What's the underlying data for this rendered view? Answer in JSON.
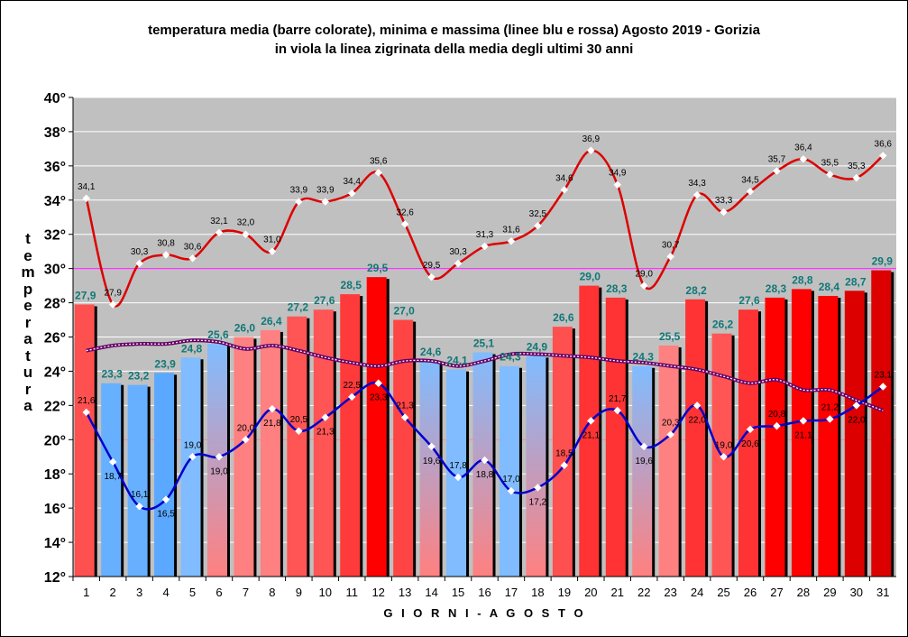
{
  "chart_data": {
    "type": "bar",
    "title": "temperatura media (barre colorate), minima e massima (linee blu e rossa) Agosto 2019 - Gorizia",
    "subtitle": "in viola la linea zigrinata della media degli ultimi 30 anni",
    "xlabel": "G I O R N I   -  A G O S T O",
    "ylabel": "temperatura",
    "ylim": [
      12,
      40
    ],
    "yticks": [
      "12°",
      "14°",
      "16°",
      "18°",
      "20°",
      "22°",
      "24°",
      "26°",
      "28°",
      "30°",
      "32°",
      "34°",
      "36°",
      "38°",
      "40°"
    ],
    "categories": [
      "1",
      "2",
      "3",
      "4",
      "5",
      "6",
      "7",
      "8",
      "9",
      "10",
      "11",
      "12",
      "13",
      "14",
      "15",
      "16",
      "17",
      "18",
      "19",
      "20",
      "21",
      "22",
      "23",
      "24",
      "25",
      "26",
      "27",
      "28",
      "29",
      "30",
      "31"
    ],
    "grid": true,
    "series": [
      {
        "name": "temperatura media",
        "kind": "bar",
        "values": [
          27.9,
          23.3,
          23.2,
          23.9,
          24.8,
          25.6,
          26.0,
          26.4,
          27.2,
          27.6,
          28.5,
          29.5,
          27.0,
          24.6,
          24.1,
          25.1,
          24.3,
          24.9,
          26.6,
          29.0,
          28.3,
          24.3,
          25.5,
          28.2,
          26.2,
          27.6,
          28.3,
          28.8,
          28.4,
          28.7,
          29.9
        ],
        "labels": [
          "27,9",
          "23,3",
          "23,2",
          "23,9",
          "24,8",
          "25,6",
          "26,0",
          "26,4",
          "27,2",
          "27,6",
          "28,5",
          "29,5",
          "27,0",
          "24,6",
          "24,1",
          "25,1",
          "24,3",
          "24,9",
          "26,6",
          "29,0",
          "28,3",
          "24,3",
          "25,5",
          "28,2",
          "26,2",
          "27,6",
          "28,3",
          "28,8",
          "28,4",
          "28,7",
          "29,9"
        ],
        "colors": [
          "#ff5050",
          "#66b0ff",
          "#66b0ff",
          "#5aa8ff",
          "#80bcff",
          "grad",
          "#ff8080",
          "#ff8080",
          "#ff5555",
          "#ff5555",
          "#ff3a3a",
          "#ff0000",
          "#ff4444",
          "grad",
          "#80bcff",
          "grad",
          "#80bcff",
          "grad",
          "#ff5050",
          "#ff3333",
          "#ff3333",
          "grad",
          "#ff8080",
          "#ff3333",
          "#ff5555",
          "#ff3333",
          "#ff0000",
          "#ff0000",
          "#ff0000",
          "#dd0000",
          "#dd0000"
        ]
      },
      {
        "name": "massima",
        "kind": "line",
        "color": "#dd0000",
        "values": [
          34.1,
          27.9,
          30.3,
          30.8,
          30.6,
          32.1,
          32.0,
          31.0,
          33.9,
          33.9,
          34.4,
          35.6,
          32.6,
          29.5,
          30.3,
          31.3,
          31.6,
          32.5,
          34.6,
          36.9,
          34.9,
          29.0,
          30.7,
          34.3,
          33.3,
          34.5,
          35.7,
          36.4,
          35.5,
          35.3,
          36.6
        ],
        "labels": [
          "34,1",
          "27,9",
          "30,3",
          "30,8",
          "30,6",
          "32,1",
          "32,0",
          "31,0",
          "33,9",
          "33,9",
          "34,4",
          "35,6",
          "32,6",
          "29,5",
          "30,3",
          "31,3",
          "31,6",
          "32,5",
          "34,6",
          "36,9",
          "34,9",
          "29,0",
          "30,7",
          "34,3",
          "33,3",
          "34,5",
          "35,7",
          "36,4",
          "35,5",
          "35,3",
          "36,6"
        ]
      },
      {
        "name": "minima",
        "kind": "line",
        "color": "#0000cc",
        "values": [
          21.6,
          18.7,
          16.1,
          16.5,
          19.0,
          19.0,
          20.0,
          21.8,
          20.5,
          21.3,
          22.5,
          23.3,
          21.3,
          19.6,
          17.8,
          18.8,
          17.0,
          17.2,
          18.5,
          21.1,
          21.7,
          19.6,
          20.3,
          22.0,
          19.0,
          20.6,
          20.8,
          21.1,
          21.2,
          22.0,
          23.1
        ],
        "labels": [
          "21,6",
          "18,7",
          "16,1",
          "16,5",
          "19,0",
          "19,0",
          "20,0",
          "21,8",
          "20,5",
          "21,3",
          "22,5",
          "23,3",
          "21,3",
          "19,6",
          "17,8",
          "18,8",
          "17,0",
          "17,2",
          "18,5",
          "21,1",
          "21,7",
          "19,6",
          "20,3",
          "22,0",
          "19,0",
          "20,6",
          "20,8",
          "21,1",
          "21,2",
          "22,0",
          "23,1"
        ]
      },
      {
        "name": "media degli ultimi 30 anni",
        "kind": "line",
        "color": "#660066",
        "values": [
          25.2,
          25.5,
          25.6,
          25.6,
          25.8,
          25.7,
          25.3,
          25.5,
          25.2,
          24.8,
          24.5,
          24.3,
          24.6,
          24.6,
          24.3,
          24.6,
          25.0,
          25.0,
          24.9,
          24.8,
          24.6,
          24.5,
          24.3,
          24.1,
          23.7,
          23.3,
          23.5,
          22.9,
          22.9,
          22.3,
          21.7
        ]
      }
    ],
    "reference_lines": [
      {
        "value": 30,
        "color": "#ff33ff"
      },
      {
        "value": 20,
        "color": "#e89090"
      }
    ]
  }
}
